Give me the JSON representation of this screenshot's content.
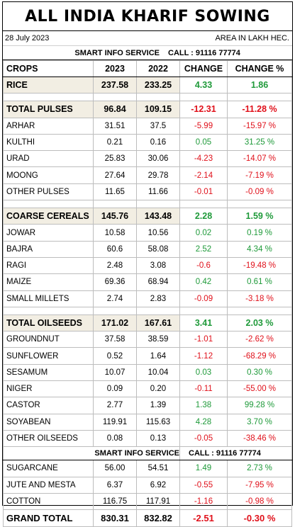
{
  "title": "ALL INDIA KHARIF SOWING",
  "date": "28 July 2023",
  "unit": "AREA IN LAKH HEC.",
  "info": {
    "service": "SMART INFO SERVICE",
    "call": "CALL : 91116 77774"
  },
  "headers": [
    "CROPS",
    "2023",
    "2022",
    "CHANGE",
    "CHANGE %"
  ],
  "colors": {
    "positive": "#1f9a3a",
    "negative": "#e0101a",
    "total_fill": "#f2eee3"
  },
  "rows": {
    "rice": {
      "name": "RICE",
      "y2023": "237.58",
      "y2022": "233.25",
      "change": "4.33",
      "pct": "1.86"
    },
    "total_pulses": {
      "name": "TOTAL PULSES",
      "y2023": "96.84",
      "y2022": "109.15",
      "change": "-12.31",
      "pct": "-11.28 %"
    },
    "arhar": {
      "name": "ARHAR",
      "y2023": "31.51",
      "y2022": "37.5",
      "change": "-5.99",
      "pct": "-15.97 %"
    },
    "kulthi": {
      "name": "KULTHI",
      "y2023": "0.21",
      "y2022": "0.16",
      "change": "0.05",
      "pct": "31.25 %"
    },
    "urad": {
      "name": "URAD",
      "y2023": "25.83",
      "y2022": "30.06",
      "change": "-4.23",
      "pct": "-14.07 %"
    },
    "moong": {
      "name": "MOONG",
      "y2023": "27.64",
      "y2022": "29.78",
      "change": "-2.14",
      "pct": "-7.19 %"
    },
    "other_pulses": {
      "name": "OTHER PULSES",
      "y2023": "11.65",
      "y2022": "11.66",
      "change": "-0.01",
      "pct": "-0.09 %"
    },
    "coarse_cereals": {
      "name": "COARSE CEREALS",
      "y2023": "145.76",
      "y2022": "143.48",
      "change": "2.28",
      "pct": "1.59 %"
    },
    "jowar": {
      "name": "JOWAR",
      "y2023": "10.58",
      "y2022": "10.56",
      "change": "0.02",
      "pct": "0.19 %"
    },
    "bajra": {
      "name": "BAJRA",
      "y2023": "60.6",
      "y2022": "58.08",
      "change": "2.52",
      "pct": "4.34 %"
    },
    "ragi": {
      "name": "RAGI",
      "y2023": "2.48",
      "y2022": "3.08",
      "change": "-0.6",
      "pct": "-19.48 %"
    },
    "maize": {
      "name": "MAIZE",
      "y2023": "69.36",
      "y2022": "68.94",
      "change": "0.42",
      "pct": "0.61 %"
    },
    "small_millets": {
      "name": "SMALL MILLETS",
      "y2023": "2.74",
      "y2022": "2.83",
      "change": "-0.09",
      "pct": "-3.18 %"
    },
    "total_oilseeds": {
      "name": "TOTAL OILSEEDS",
      "y2023": "171.02",
      "y2022": "167.61",
      "change": "3.41",
      "pct": "2.03 %"
    },
    "groundnut": {
      "name": "GROUNDNUT",
      "y2023": "37.58",
      "y2022": "38.59",
      "change": "-1.01",
      "pct": "-2.62 %"
    },
    "sunflower": {
      "name": "SUNFLOWER",
      "y2023": "0.52",
      "y2022": "1.64",
      "change": "-1.12",
      "pct": "-68.29 %"
    },
    "sesamum": {
      "name": "SESAMUM",
      "y2023": "10.07",
      "y2022": "10.04",
      "change": "0.03",
      "pct": "0.30 %"
    },
    "niger": {
      "name": "NIGER",
      "y2023": "0.09",
      "y2022": "0.20",
      "change": "-0.11",
      "pct": "-55.00 %"
    },
    "castor": {
      "name": "CASTOR",
      "y2023": "2.77",
      "y2022": "1.39",
      "change": "1.38",
      "pct": "99.28 %"
    },
    "soyabean": {
      "name": "SOYABEAN",
      "y2023": "119.91",
      "y2022": "115.63",
      "change": "4.28",
      "pct": "3.70 %"
    },
    "other_oilseeds": {
      "name": "OTHER OILSEEDS",
      "y2023": "0.08",
      "y2022": "0.13",
      "change": "-0.05",
      "pct": "-38.46 %"
    },
    "sugarcane": {
      "name": "SUGARCANE",
      "y2023": "56.00",
      "y2022": "54.51",
      "change": "1.49",
      "pct": "2.73 %"
    },
    "jute_mesta": {
      "name": "JUTE AND MESTA",
      "y2023": "6.37",
      "y2022": "6.92",
      "change": "-0.55",
      "pct": "-7.95 %"
    },
    "cotton": {
      "name": "COTTON",
      "y2023": "116.75",
      "y2022": "117.91",
      "change": "-1.16",
      "pct": "-0.98 %"
    },
    "grand_total": {
      "name": "GRAND TOTAL",
      "y2023": "830.31",
      "y2022": "832.82",
      "change": "-2.51",
      "pct": "-0.30 %"
    }
  }
}
